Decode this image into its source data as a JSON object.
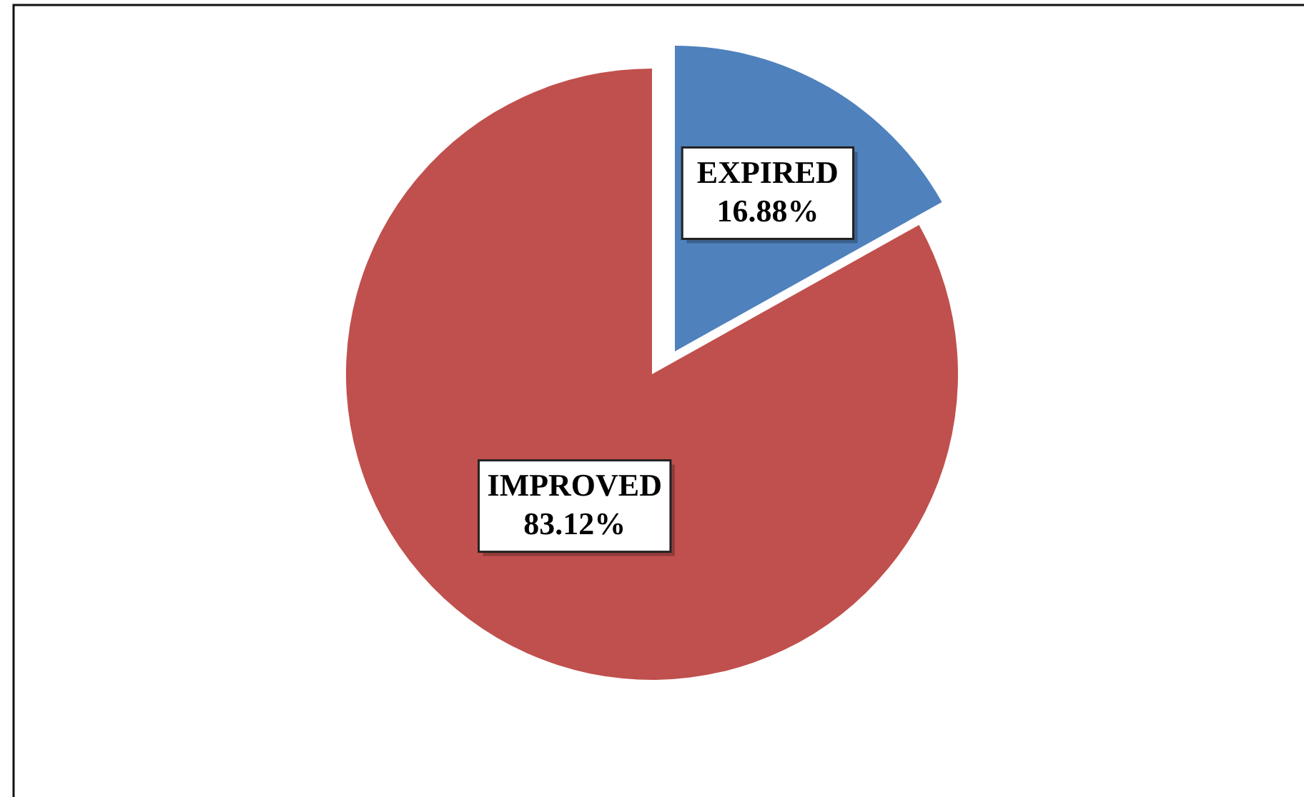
{
  "chart_data": {
    "type": "pie",
    "categories": [
      "EXPIRED",
      "IMPROVED"
    ],
    "values": [
      16.88,
      83.12
    ],
    "colors": [
      "#4f81bd",
      "#c0504d"
    ],
    "value_labels": [
      "16.88%",
      "83.12%"
    ]
  }
}
